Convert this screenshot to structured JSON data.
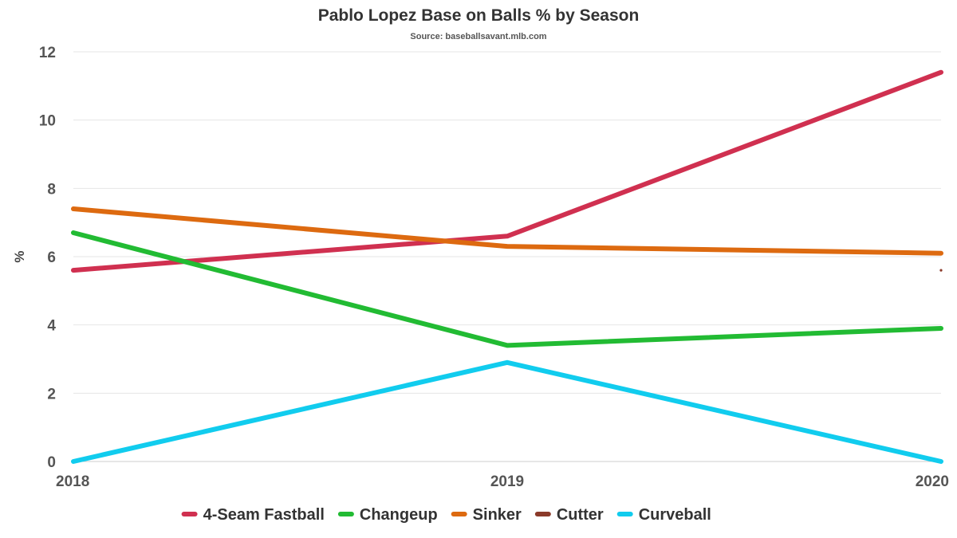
{
  "chart_data": {
    "type": "line",
    "title": "Pablo Lopez Base on Balls % by Season",
    "subtitle": "Source: baseballsavant.mlb.com",
    "xlabel": "",
    "ylabel": "%",
    "x": [
      "2018",
      "2019",
      "2020"
    ],
    "ylim": [
      0,
      12
    ],
    "yticks": [
      "0",
      "2",
      "4",
      "6",
      "8",
      "10",
      "12"
    ],
    "grid": true,
    "legend_position": "bottom",
    "series": [
      {
        "name": "4-Seam Fastball",
        "color": "#d03050",
        "values": [
          5.6,
          6.6,
          11.4
        ]
      },
      {
        "name": "Changeup",
        "color": "#22bb33",
        "values": [
          6.7,
          3.4,
          3.9
        ]
      },
      {
        "name": "Sinker",
        "color": "#dd6a10",
        "values": [
          7.4,
          6.3,
          6.1
        ]
      },
      {
        "name": "Cutter",
        "color": "#8b3a2a",
        "values": [
          null,
          null,
          5.6
        ]
      },
      {
        "name": "Curveball",
        "color": "#11ccee",
        "values": [
          0,
          2.9,
          0
        ]
      }
    ]
  }
}
